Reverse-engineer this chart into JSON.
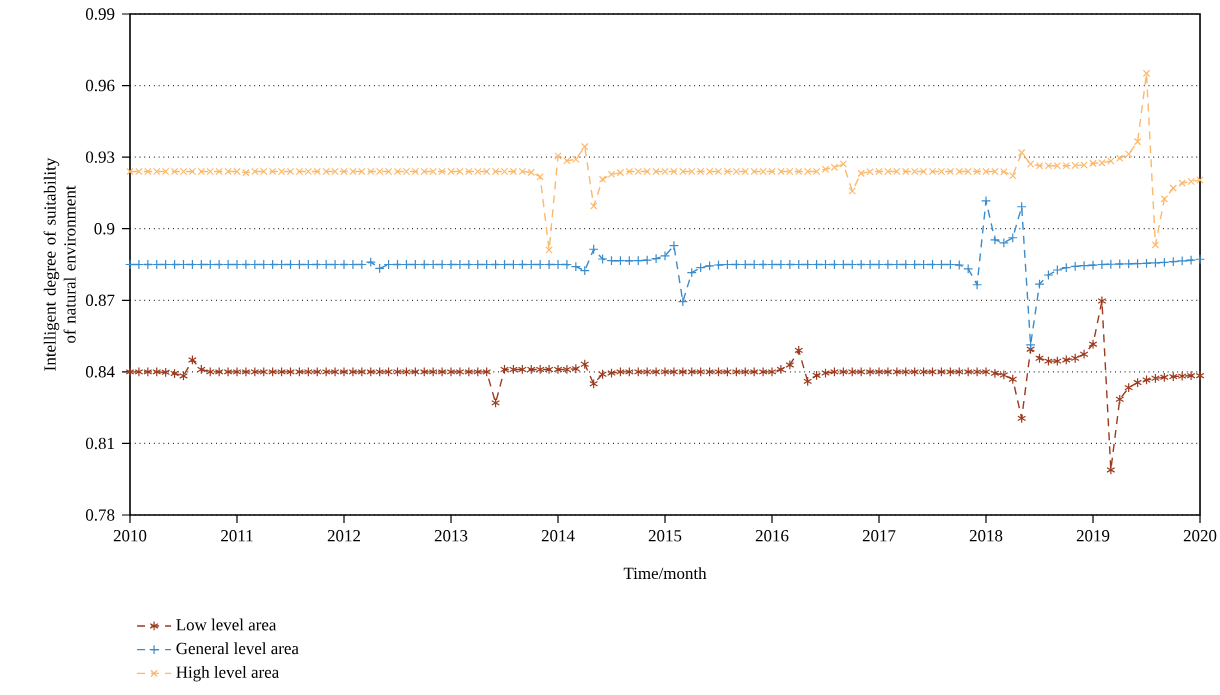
{
  "chart_data": {
    "type": "line",
    "xlabel": "Time/month",
    "ylabel": "Intelligent degree of suitability of natural environment",
    "x": [
      "2010-01",
      "2010-02",
      "2010-03",
      "2010-04",
      "2010-05",
      "2010-06",
      "2010-07",
      "2010-08",
      "2010-09",
      "2010-10",
      "2010-11",
      "2010-12",
      "2011-01",
      "2011-02",
      "2011-03",
      "2011-04",
      "2011-05",
      "2011-06",
      "2011-07",
      "2011-08",
      "2011-09",
      "2011-10",
      "2011-11",
      "2011-12",
      "2012-01",
      "2012-02",
      "2012-03",
      "2012-04",
      "2012-05",
      "2012-06",
      "2012-07",
      "2012-08",
      "2012-09",
      "2012-10",
      "2012-11",
      "2012-12",
      "2013-01",
      "2013-02",
      "2013-03",
      "2013-04",
      "2013-05",
      "2013-06",
      "2013-07",
      "2013-08",
      "2013-09",
      "2013-10",
      "2013-11",
      "2013-12",
      "2014-01",
      "2014-02",
      "2014-03",
      "2014-04",
      "2014-05",
      "2014-06",
      "2014-07",
      "2014-08",
      "2014-09",
      "2014-10",
      "2014-11",
      "2014-12",
      "2015-01",
      "2015-02",
      "2015-03",
      "2015-04",
      "2015-05",
      "2015-06",
      "2015-07",
      "2015-08",
      "2015-09",
      "2015-10",
      "2015-11",
      "2015-12",
      "2016-01",
      "2016-02",
      "2016-03",
      "2016-04",
      "2016-05",
      "2016-06",
      "2016-07",
      "2016-08",
      "2016-09",
      "2016-10",
      "2016-11",
      "2016-12",
      "2017-01",
      "2017-02",
      "2017-03",
      "2017-04",
      "2017-05",
      "2017-06",
      "2017-07",
      "2017-08",
      "2017-09",
      "2017-10",
      "2017-11",
      "2017-12",
      "2018-01",
      "2018-02",
      "2018-03",
      "2018-04",
      "2018-05",
      "2018-06",
      "2018-07",
      "2018-08",
      "2018-09",
      "2018-10",
      "2018-11",
      "2018-12",
      "2019-01",
      "2019-02",
      "2019-03",
      "2019-04",
      "2019-05",
      "2019-06",
      "2019-07",
      "2019-08",
      "2019-09",
      "2019-10",
      "2019-11",
      "2019-12",
      "2020-01"
    ],
    "series": [
      {
        "name": "Low level area",
        "color": "#9c3a1e",
        "marker": "cross",
        "line_style": "dashed",
        "values": [
          0.84,
          0.84,
          0.84,
          0.84,
          0.8398,
          0.8393,
          0.8383,
          0.845,
          0.841,
          0.84,
          0.84,
          0.84,
          0.84,
          0.84,
          0.84,
          0.84,
          0.84,
          0.84,
          0.84,
          0.84,
          0.84,
          0.84,
          0.84,
          0.84,
          0.84,
          0.84,
          0.84,
          0.84,
          0.84,
          0.84,
          0.84,
          0.84,
          0.84,
          0.84,
          0.84,
          0.84,
          0.84,
          0.84,
          0.84,
          0.84,
          0.84,
          0.827,
          0.841,
          0.841,
          0.841,
          0.841,
          0.841,
          0.841,
          0.841,
          0.841,
          0.8413,
          0.8432,
          0.835,
          0.839,
          0.8395,
          0.84,
          0.84,
          0.84,
          0.84,
          0.84,
          0.84,
          0.84,
          0.84,
          0.84,
          0.84,
          0.84,
          0.84,
          0.84,
          0.84,
          0.84,
          0.84,
          0.84,
          0.84,
          0.841,
          0.8429,
          0.849,
          0.836,
          0.8385,
          0.8395,
          0.84,
          0.84,
          0.84,
          0.84,
          0.84,
          0.84,
          0.84,
          0.84,
          0.84,
          0.84,
          0.84,
          0.84,
          0.84,
          0.84,
          0.84,
          0.84,
          0.84,
          0.84,
          0.8394,
          0.8387,
          0.8369,
          0.8205,
          0.8495,
          0.8457,
          0.8445,
          0.8445,
          0.845,
          0.8457,
          0.8474,
          0.8516,
          0.8697,
          0.7989,
          0.8285,
          0.8334,
          0.8355,
          0.8366,
          0.8373,
          0.8377,
          0.838,
          0.8382,
          0.8384,
          0.8384
        ]
      },
      {
        "name": "General level area",
        "color": "#3a8ccc",
        "marker": "plus",
        "line_style": "dashed",
        "values": [
          0.885,
          0.885,
          0.885,
          0.885,
          0.885,
          0.885,
          0.885,
          0.885,
          0.885,
          0.885,
          0.885,
          0.885,
          0.885,
          0.885,
          0.885,
          0.885,
          0.885,
          0.885,
          0.885,
          0.885,
          0.885,
          0.885,
          0.885,
          0.885,
          0.885,
          0.885,
          0.885,
          0.886,
          0.8834,
          0.885,
          0.885,
          0.885,
          0.885,
          0.885,
          0.885,
          0.885,
          0.885,
          0.885,
          0.885,
          0.885,
          0.885,
          0.885,
          0.885,
          0.885,
          0.885,
          0.885,
          0.885,
          0.885,
          0.885,
          0.885,
          0.8841,
          0.8824,
          0.8914,
          0.8873,
          0.8866,
          0.8866,
          0.8866,
          0.8866,
          0.8868,
          0.8875,
          0.8886,
          0.8929,
          0.8694,
          0.8816,
          0.8837,
          0.8844,
          0.8848,
          0.885,
          0.885,
          0.885,
          0.885,
          0.885,
          0.885,
          0.885,
          0.885,
          0.885,
          0.885,
          0.885,
          0.885,
          0.885,
          0.885,
          0.885,
          0.885,
          0.885,
          0.885,
          0.885,
          0.885,
          0.885,
          0.885,
          0.885,
          0.885,
          0.885,
          0.885,
          0.8848,
          0.8832,
          0.8765,
          0.9117,
          0.8953,
          0.8941,
          0.8962,
          0.9092,
          0.8513,
          0.8768,
          0.8806,
          0.8827,
          0.8837,
          0.8842,
          0.8845,
          0.8847,
          0.885,
          0.8851,
          0.8852,
          0.8853,
          0.8854,
          0.8855,
          0.8857,
          0.8859,
          0.8862,
          0.8865,
          0.8868,
          0.8872
        ]
      },
      {
        "name": "High level area",
        "color": "#fdb86a",
        "marker": "x",
        "line_style": "dashed",
        "values": [
          0.924,
          0.924,
          0.924,
          0.924,
          0.924,
          0.924,
          0.924,
          0.924,
          0.924,
          0.924,
          0.924,
          0.924,
          0.924,
          0.9235,
          0.924,
          0.924,
          0.924,
          0.924,
          0.924,
          0.924,
          0.924,
          0.924,
          0.924,
          0.924,
          0.924,
          0.924,
          0.924,
          0.924,
          0.924,
          0.924,
          0.924,
          0.924,
          0.924,
          0.924,
          0.924,
          0.924,
          0.924,
          0.924,
          0.924,
          0.924,
          0.924,
          0.924,
          0.924,
          0.924,
          0.924,
          0.9236,
          0.9218,
          0.8911,
          0.9305,
          0.9285,
          0.9291,
          0.9344,
          0.9095,
          0.9207,
          0.9228,
          0.9235,
          0.924,
          0.924,
          0.924,
          0.924,
          0.924,
          0.924,
          0.924,
          0.924,
          0.924,
          0.924,
          0.924,
          0.924,
          0.924,
          0.924,
          0.924,
          0.924,
          0.924,
          0.924,
          0.924,
          0.924,
          0.924,
          0.924,
          0.9249,
          0.9257,
          0.9271,
          0.9158,
          0.9232,
          0.9239,
          0.924,
          0.924,
          0.924,
          0.924,
          0.924,
          0.924,
          0.924,
          0.924,
          0.924,
          0.924,
          0.924,
          0.924,
          0.924,
          0.924,
          0.9239,
          0.9222,
          0.9319,
          0.9271,
          0.9264,
          0.9264,
          0.9264,
          0.9264,
          0.9265,
          0.9267,
          0.9274,
          0.9276,
          0.9284,
          0.9295,
          0.9313,
          0.9365,
          0.9651,
          0.8932,
          0.9125,
          0.917,
          0.9191,
          0.9198,
          0.9204
        ]
      }
    ],
    "xlim": [
      "2010",
      "2020"
    ],
    "xticks": [
      "2010",
      "2011",
      "2012",
      "2013",
      "2014",
      "2015",
      "2016",
      "2017",
      "2018",
      "2019",
      "2020"
    ],
    "ylim": [
      0.78,
      0.99
    ],
    "yticks": [
      0.78,
      0.81,
      0.84,
      0.87,
      0.9,
      0.93,
      0.96,
      0.99
    ],
    "grid": "y",
    "legend": "bottom left"
  }
}
